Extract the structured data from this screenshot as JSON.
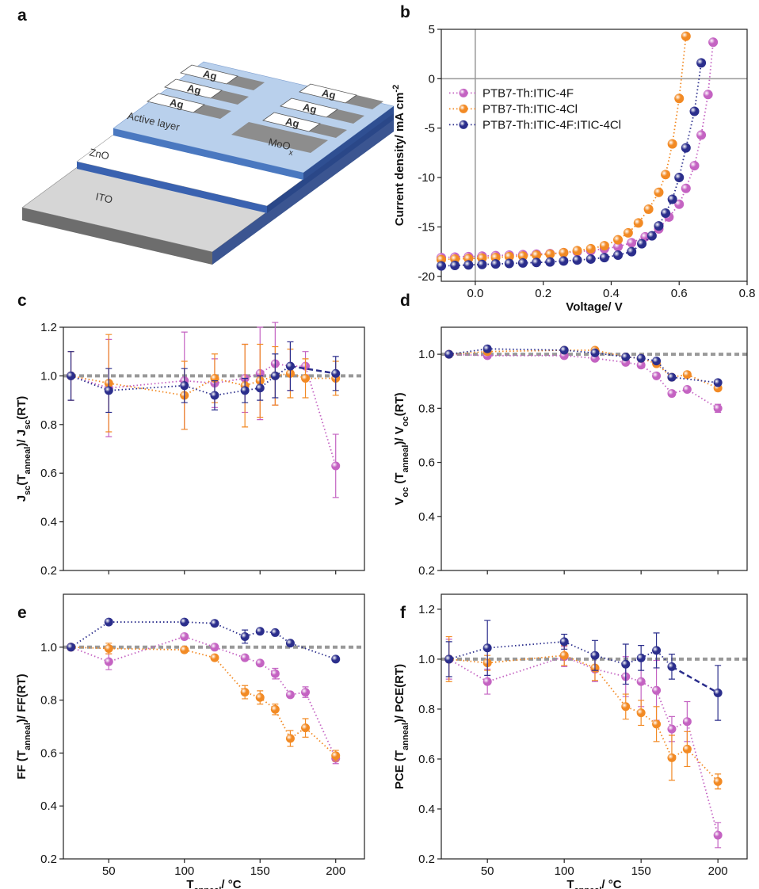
{
  "schematic": {
    "panel": "a",
    "layers": [
      "ITO",
      "ZnO",
      "Active layer"
    ],
    "electrodes": [
      "Ag",
      "Ag",
      "Ag",
      "Ag",
      "Ag",
      "Ag"
    ],
    "contact": [
      {
        "t": "MoO"
      },
      {
        "t": "x",
        "sub": true
      }
    ]
  },
  "chart_data": [
    {
      "panel": "b",
      "type": "line",
      "zero_lines": true,
      "legend": "upper left",
      "xlabel": [
        {
          "t": "Voltage/ V"
        }
      ],
      "ylabel": [
        {
          "t": "Current density/ mA cm"
        },
        {
          "t": "-2",
          "sup": true
        }
      ],
      "xlim": [
        -0.1,
        0.8
      ],
      "ylim": [
        -20.5,
        5
      ],
      "xticks": [
        {
          "value": 0,
          "label": "0.0"
        },
        0.2,
        0.4,
        0.6,
        0.8
      ],
      "yticks": [
        -20,
        -15,
        -10,
        -5,
        0,
        5
      ],
      "series": [
        {
          "name": "PTB7-Th:ITIC-4F",
          "color": "#c463c2",
          "x": [
            -0.1,
            -0.06,
            -0.02,
            0.02,
            0.06,
            0.1,
            0.14,
            0.18,
            0.22,
            0.26,
            0.3,
            0.34,
            0.38,
            0.42,
            0.46,
            0.5,
            0.54,
            0.57,
            0.6,
            0.62,
            0.645,
            0.665,
            0.685,
            0.7
          ],
          "values": [
            -18.1,
            -18.05,
            -18.0,
            -17.95,
            -17.9,
            -17.85,
            -17.8,
            -17.75,
            -17.7,
            -17.6,
            -17.5,
            -17.4,
            -17.2,
            -17.0,
            -16.6,
            -16.0,
            -15.2,
            -14.0,
            -12.7,
            -11.1,
            -8.8,
            -5.7,
            -1.6,
            3.7
          ]
        },
        {
          "name": "PTB7-Th:ITIC-4Cl",
          "color": "#f28a24",
          "x": [
            -0.1,
            -0.06,
            -0.02,
            0.02,
            0.06,
            0.1,
            0.14,
            0.18,
            0.22,
            0.26,
            0.3,
            0.34,
            0.38,
            0.42,
            0.45,
            0.48,
            0.51,
            0.54,
            0.56,
            0.58,
            0.6,
            0.62
          ],
          "values": [
            -18.3,
            -18.25,
            -18.2,
            -18.15,
            -18.1,
            -18.0,
            -17.95,
            -17.85,
            -17.75,
            -17.6,
            -17.4,
            -17.2,
            -16.9,
            -16.3,
            -15.6,
            -14.6,
            -13.2,
            -11.5,
            -9.7,
            -6.6,
            -2.0,
            4.3
          ]
        },
        {
          "name": "PTB7-Th:ITIC-4F:ITIC-4Cl",
          "color": "#2b2e8c",
          "x": [
            -0.1,
            -0.06,
            -0.02,
            0.02,
            0.06,
            0.1,
            0.14,
            0.18,
            0.22,
            0.26,
            0.3,
            0.34,
            0.38,
            0.42,
            0.46,
            0.49,
            0.52,
            0.54,
            0.56,
            0.58,
            0.6,
            0.62,
            0.645,
            0.665
          ],
          "values": [
            -18.95,
            -18.9,
            -18.85,
            -18.8,
            -18.75,
            -18.7,
            -18.65,
            -18.6,
            -18.55,
            -18.45,
            -18.35,
            -18.25,
            -18.1,
            -17.85,
            -17.5,
            -16.7,
            -15.9,
            -14.9,
            -13.6,
            -12.2,
            -10.0,
            -7.0,
            -3.3,
            1.6
          ]
        }
      ]
    },
    {
      "panel": "c",
      "type": "scatter",
      "xtick_labels": false,
      "reference_line": 1,
      "ylabel": [
        {
          "t": "J"
        },
        {
          "t": "sc",
          "sub": true
        },
        {
          "t": "(T"
        },
        {
          "t": "anneal",
          "sub": true
        },
        {
          "t": ")/ J"
        },
        {
          "t": "sc",
          "sub": true
        },
        {
          "t": "(RT)"
        }
      ],
      "xlim": [
        20,
        219
      ],
      "ylim": [
        0.2,
        1.2
      ],
      "xticks": [
        50,
        100,
        150,
        200
      ],
      "yticks": [
        0.2,
        0.4,
        0.6,
        0.8,
        {
          "value": 1,
          "label": "1.0"
        },
        1.2
      ],
      "series": [
        {
          "color": "#c463c2",
          "x": [
            25,
            50,
            100,
            120,
            140,
            150,
            160,
            170,
            180,
            200
          ],
          "values": [
            1.0,
            0.95,
            0.98,
            0.97,
            0.99,
            1.01,
            1.05,
            1.04,
            1.04,
            0.63
          ],
          "errors": [
            0.1,
            0.2,
            0.2,
            0.1,
            0.14,
            0.19,
            0.17,
            0.1,
            0.06,
            0.13
          ]
        },
        {
          "color": "#f28a24",
          "x": [
            25,
            50,
            100,
            120,
            140,
            150,
            160,
            170,
            180,
            200
          ],
          "values": [
            1.0,
            0.97,
            0.92,
            0.99,
            0.96,
            0.98,
            1.0,
            1.01,
            0.99,
            0.99
          ],
          "errors": [
            0.1,
            0.2,
            0.14,
            0.1,
            0.17,
            0.15,
            0.12,
            0.1,
            0.08,
            0.07
          ]
        },
        {
          "color": "#2b2e8c",
          "x": [
            25,
            50,
            100,
            120,
            140,
            150,
            160,
            170,
            200
          ],
          "last_segment_dashed": true,
          "values": [
            1.0,
            0.94,
            0.96,
            0.92,
            0.94,
            0.95,
            1.0,
            1.04,
            1.01
          ],
          "errors": [
            0.1,
            0.09,
            0.07,
            0.06,
            0.05,
            0.05,
            0.09,
            0.1,
            0.07
          ]
        }
      ]
    },
    {
      "panel": "d",
      "type": "scatter",
      "xtick_labels": false,
      "reference_line": 1,
      "ylabel": [
        {
          "t": "V"
        },
        {
          "t": "oc",
          "sub": true
        },
        {
          "t": " (T"
        },
        {
          "t": "anneal",
          "sub": true
        },
        {
          "t": ")/ V"
        },
        {
          "t": "oc",
          "sub": true
        },
        {
          "t": "(RT)"
        }
      ],
      "xlim": [
        20,
        219
      ],
      "ylim": [
        0.2,
        1.1
      ],
      "xticks": [
        50,
        100,
        150,
        200
      ],
      "yticks": [
        0.2,
        0.4,
        0.6,
        0.8,
        {
          "value": 1,
          "label": "1.0"
        }
      ],
      "series": [
        {
          "color": "#c463c2",
          "x": [
            25,
            50,
            100,
            120,
            140,
            150,
            160,
            170,
            180,
            200
          ],
          "values": [
            1.0,
            0.995,
            0.995,
            0.985,
            0.97,
            0.96,
            0.92,
            0.855,
            0.87,
            0.8
          ],
          "errors": [
            0.01,
            0.01,
            0.01,
            0.01,
            0.01,
            0.01,
            0.01,
            0.01,
            0.01,
            0.015
          ]
        },
        {
          "color": "#f28a24",
          "x": [
            25,
            50,
            100,
            120,
            140,
            150,
            160,
            170,
            180,
            200
          ],
          "values": [
            1.0,
            1.01,
            1.015,
            1.015,
            0.99,
            0.985,
            0.965,
            0.915,
            0.925,
            0.875
          ],
          "errors": [
            0.01,
            0.01,
            0.01,
            0.01,
            0.01,
            0.01,
            0.01,
            0.01,
            0.01,
            0.01
          ]
        },
        {
          "color": "#2b2e8c",
          "x": [
            25,
            50,
            100,
            120,
            140,
            150,
            160,
            170,
            200
          ],
          "values": [
            1.0,
            1.02,
            1.015,
            1.005,
            0.99,
            0.985,
            0.975,
            0.915,
            0.895
          ],
          "errors": [
            0.01,
            0.01,
            0.01,
            0.01,
            0.01,
            0.01,
            0.01,
            0.01,
            0.01
          ]
        }
      ]
    },
    {
      "panel": "e",
      "type": "scatter",
      "xtick_labels": true,
      "reference_line": 1,
      "xlabel": [
        {
          "t": "T"
        },
        {
          "t": "anneal",
          "sub": true
        },
        {
          "t": "/ °C"
        }
      ],
      "ylabel": [
        {
          "t": "FF (T"
        },
        {
          "t": "anneal",
          "sub": true
        },
        {
          "t": ")/ FF(RT)"
        }
      ],
      "xlim": [
        20,
        219
      ],
      "ylim": [
        0.2,
        1.2
      ],
      "xticks": [
        50,
        100,
        150,
        200
      ],
      "yticks": [
        0.2,
        0.4,
        0.6,
        0.8,
        {
          "value": 1,
          "label": "1.0"
        }
      ],
      "series": [
        {
          "color": "#c463c2",
          "x": [
            25,
            50,
            100,
            120,
            140,
            150,
            160,
            170,
            180,
            200
          ],
          "values": [
            1.0,
            0.945,
            1.04,
            1.0,
            0.96,
            0.94,
            0.9,
            0.82,
            0.83,
            0.58
          ],
          "errors": [
            0.01,
            0.03,
            0.01,
            0.01,
            0.01,
            0.01,
            0.02,
            0.01,
            0.02,
            0.02
          ]
        },
        {
          "color": "#f28a24",
          "x": [
            25,
            50,
            100,
            120,
            140,
            150,
            160,
            170,
            180,
            200
          ],
          "values": [
            1.0,
            0.995,
            0.99,
            0.96,
            0.83,
            0.81,
            0.765,
            0.655,
            0.695,
            0.59
          ],
          "errors": [
            0.01,
            0.02,
            0.01,
            0.01,
            0.025,
            0.025,
            0.02,
            0.03,
            0.035,
            0.02
          ]
        },
        {
          "color": "#2b2e8c",
          "x": [
            25,
            50,
            100,
            120,
            140,
            150,
            160,
            170,
            200
          ],
          "values": [
            1.0,
            1.095,
            1.095,
            1.09,
            1.04,
            1.06,
            1.055,
            1.015,
            0.955
          ],
          "errors": [
            0.01,
            0.01,
            0.01,
            0.01,
            0.025,
            0.01,
            0.01,
            0.01,
            0.01
          ]
        }
      ]
    },
    {
      "panel": "f",
      "type": "scatter",
      "xtick_labels": true,
      "reference_line": 1,
      "xlabel": [
        {
          "t": "T"
        },
        {
          "t": "anneal",
          "sub": true
        },
        {
          "t": "/ °C"
        }
      ],
      "ylabel": [
        {
          "t": "PCE (T"
        },
        {
          "t": "anneal",
          "sub": true
        },
        {
          "t": ")/ PCE(RT)"
        }
      ],
      "xlim": [
        20,
        219
      ],
      "ylim": [
        0.2,
        1.26
      ],
      "xticks": [
        50,
        100,
        150,
        200
      ],
      "yticks": [
        0.2,
        0.4,
        0.6,
        0.8,
        {
          "value": 1,
          "label": "1.0"
        },
        1.2
      ],
      "series": [
        {
          "color": "#c463c2",
          "x": [
            25,
            50,
            100,
            120,
            140,
            150,
            160,
            170,
            180,
            200
          ],
          "values": [
            1.0,
            0.91,
            1.01,
            0.96,
            0.93,
            0.91,
            0.875,
            0.72,
            0.75,
            0.295
          ],
          "errors": [
            0.08,
            0.05,
            0.04,
            0.05,
            0.08,
            0.1,
            0.12,
            0.05,
            0.08,
            0.05
          ]
        },
        {
          "color": "#f28a24",
          "x": [
            25,
            50,
            100,
            120,
            140,
            150,
            160,
            170,
            180,
            200
          ],
          "values": [
            1.0,
            0.985,
            1.015,
            0.965,
            0.81,
            0.785,
            0.74,
            0.605,
            0.64,
            0.51
          ],
          "errors": [
            0.09,
            0.03,
            0.04,
            0.05,
            0.05,
            0.05,
            0.07,
            0.09,
            0.07,
            0.03
          ]
        },
        {
          "color": "#2b2e8c",
          "x": [
            25,
            50,
            100,
            120,
            140,
            150,
            160,
            170,
            200
          ],
          "last_segment_dashed": true,
          "values": [
            1.0,
            1.045,
            1.07,
            1.015,
            0.98,
            1.005,
            1.035,
            0.97,
            0.865
          ],
          "errors": [
            0.07,
            0.11,
            0.03,
            0.06,
            0.08,
            0.05,
            0.07,
            0.05,
            0.11
          ]
        }
      ]
    }
  ]
}
